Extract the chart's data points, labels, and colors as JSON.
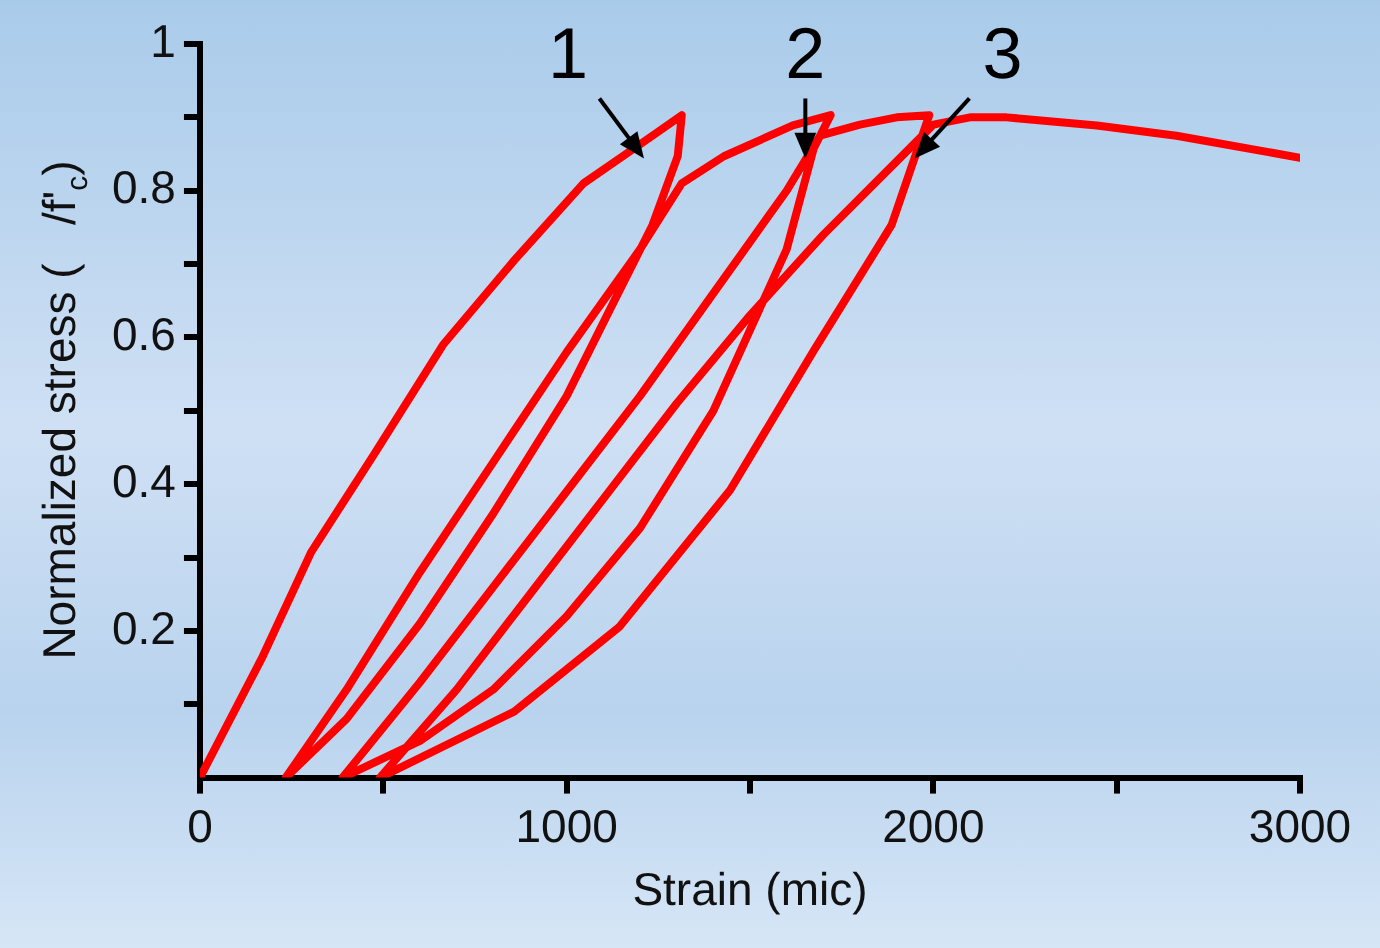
{
  "chart_data": {
    "type": "line",
    "xlabel": "Strain (mic)",
    "ylabel": "Normalized stress (   /f'$_{c}$)",
    "xlim": [
      0,
      3000
    ],
    "ylim": [
      0,
      1
    ],
    "xticks": [
      0,
      {
        "value": 500,
        "label": null
      },
      1000,
      {
        "value": 1500,
        "label": null
      },
      2000,
      {
        "value": 2500,
        "label": null
      },
      3000
    ],
    "yticks": [
      {
        "value": 0.1,
        "label": null
      },
      0.2,
      {
        "value": 0.3,
        "label": null
      },
      0.4,
      {
        "value": 0.5,
        "label": null
      },
      0.6,
      {
        "value": 0.7,
        "label": null
      },
      0.8,
      {
        "value": 0.9,
        "label": null
      },
      1
    ],
    "grid": false,
    "legend": false,
    "marker": "none",
    "line_style": "solid",
    "series": [
      {
        "color": "#ff0000",
        "x": [
          0,
          171,
          303,
          474,
          663,
          857,
          1046,
          1234,
          1314,
          1303,
          1234,
          1120,
          1000,
          800,
          600,
          400,
          234,
          400,
          600,
          800,
          1000,
          1200,
          1314,
          1429,
          1617,
          1720,
          1674,
          1600,
          1400,
          1200,
          1000,
          800,
          600,
          389,
          600,
          800,
          1000,
          1200,
          1400,
          1600,
          1691,
          1800,
          1900,
          1989,
          1886,
          1674,
          1446,
          1143,
          857,
          491,
          700,
          900,
          1100,
          1300,
          1500,
          1700,
          1900,
          2000,
          2100,
          2200,
          2446,
          2663,
          3000
        ],
        "values": [
          0,
          0.165,
          0.307,
          0.44,
          0.59,
          0.705,
          0.81,
          0.875,
          0.903,
          0.847,
          0.753,
          0.64,
          0.52,
          0.36,
          0.21,
          0.08,
          0,
          0.12,
          0.28,
          0.43,
          0.58,
          0.72,
          0.81,
          0.847,
          0.889,
          0.903,
          0.858,
          0.72,
          0.5,
          0.34,
          0.22,
          0.12,
          0.05,
          0,
          0.13,
          0.26,
          0.39,
          0.52,
          0.66,
          0.8,
          0.875,
          0.89,
          0.9,
          0.903,
          0.753,
          0.582,
          0.392,
          0.205,
          0.09,
          0,
          0.12,
          0.25,
          0.38,
          0.51,
          0.63,
          0.74,
          0.84,
          0.89,
          0.9,
          0.9,
          0.889,
          0.875,
          0.845
        ]
      }
    ],
    "annotations": [
      {
        "text": "1",
        "x": 1211,
        "y": 0.844
      },
      {
        "text": "2",
        "x": 1651,
        "y": 0.844
      },
      {
        "text": "3",
        "x": 1949,
        "y": 0.844
      }
    ]
  }
}
